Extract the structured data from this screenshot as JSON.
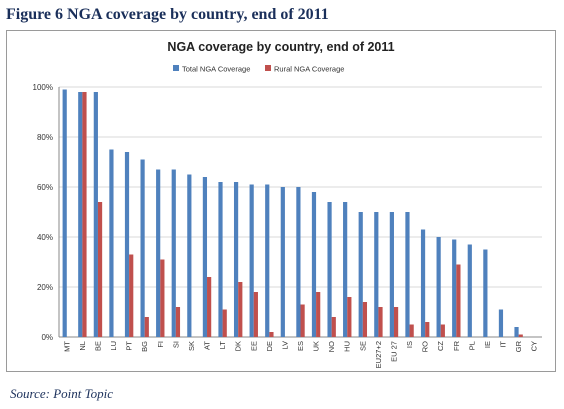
{
  "figure_title": "Figure 6 NGA coverage by country, end of 2011",
  "source": "Source: Point Topic",
  "chart_data": {
    "type": "bar",
    "title": "NGA coverage by country, end of 2011",
    "xlabel": "",
    "ylabel": "",
    "ylim": [
      0,
      100
    ],
    "y_ticks": [
      "0%",
      "20%",
      "40%",
      "60%",
      "80%",
      "100%"
    ],
    "legend_position": "top",
    "grid": true,
    "categories": [
      "MT",
      "NL",
      "BE",
      "LU",
      "PT",
      "BG",
      "FI",
      "SI",
      "SK",
      "AT",
      "LT",
      "DK",
      "EE",
      "DE",
      "LV",
      "ES",
      "UK",
      "NO",
      "HU",
      "SE",
      "EU27+2",
      "EU 27",
      "IS",
      "RO",
      "CZ",
      "FR",
      "PL",
      "IE",
      "IT",
      "GR",
      "CY"
    ],
    "series": [
      {
        "name": "Total NGA Coverage",
        "color": "#4f81bd",
        "values": [
          99,
          98,
          98,
          75,
          74,
          71,
          67,
          67,
          65,
          64,
          62,
          62,
          61,
          61,
          60,
          60,
          58,
          54,
          54,
          50,
          50,
          50,
          50,
          43,
          40,
          39,
          37,
          35,
          11,
          4,
          0
        ]
      },
      {
        "name": "Rural NGA Coverage",
        "color": "#c0504d",
        "values": [
          0,
          98,
          54,
          0,
          33,
          8,
          31,
          12,
          0,
          24,
          11,
          22,
          18,
          2,
          0,
          13,
          18,
          8,
          16,
          14,
          12,
          12,
          5,
          6,
          5,
          29,
          0,
          0,
          0,
          1,
          0
        ]
      }
    ]
  }
}
